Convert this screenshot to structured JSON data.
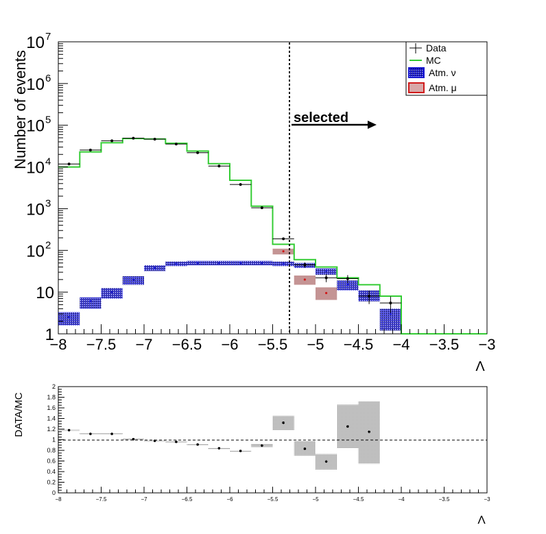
{
  "chart_data": [
    {
      "type": "histogram",
      "ylabel": "Number of events",
      "xlabel": "Λ",
      "xlim": [
        -8,
        -3
      ],
      "ylim": [
        1,
        10000000
      ],
      "yscale": "log",
      "x_ticks": [
        "−8",
        "−7.5",
        "−7",
        "−6.5",
        "−6",
        "−5.5",
        "−5",
        "−4.5",
        "−4",
        "−3.5",
        "−3"
      ],
      "y_ticks": [
        {
          "value": 1,
          "label": "1",
          "sup": ""
        },
        {
          "value": 10,
          "label": "10",
          "sup": ""
        },
        {
          "value": 100,
          "label": "10",
          "sup": "2"
        },
        {
          "value": 1000,
          "label": "10",
          "sup": "3"
        },
        {
          "value": 10000,
          "label": "10",
          "sup": "4"
        },
        {
          "value": 100000,
          "label": "10",
          "sup": "5"
        },
        {
          "value": 1000000,
          "label": "10",
          "sup": "6"
        },
        {
          "value": 10000000,
          "label": "10",
          "sup": "7"
        }
      ],
      "bin_edges": [
        -8,
        -7.75,
        -7.5,
        -7.25,
        -7,
        -6.75,
        -6.5,
        -6.25,
        -6,
        -5.75,
        -5.5,
        -5.25,
        -5,
        -4.75,
        -4.5,
        -4.25,
        -4,
        -3.75,
        -3.5,
        -3.25,
        -3
      ],
      "legend": {
        "position": "top-right",
        "entries": [
          {
            "label": "Data"
          },
          {
            "label": "MC"
          },
          {
            "label": "Atm. ν"
          },
          {
            "label": "Atm. μ"
          }
        ]
      },
      "cut": {
        "x": -5.3,
        "label": "selected"
      },
      "colors": {
        "data": "#000000",
        "mc": "#33cc33",
        "atm_nu": "#1a1ad0",
        "atm_mu": "#d01a1a",
        "band": "#8a8a8a"
      },
      "series": [
        {
          "name": "MC",
          "values": [
            10000,
            23000,
            38000,
            48000,
            47000,
            37000,
            24000,
            12000,
            4800,
            1150,
            140,
            60,
            40,
            22,
            15,
            8,
            1,
            1,
            1,
            1
          ]
        },
        {
          "name": "Data",
          "values": [
            11800,
            25500,
            42500,
            49000,
            46500,
            35500,
            22000,
            10500,
            3800,
            1050,
            190,
            45,
            22,
            21,
            8,
            5.5,
            null,
            null,
            null,
            null
          ]
        },
        {
          "name": "Atm. ν",
          "values": [
            2.5,
            6,
            10,
            20,
            38,
            48,
            50,
            50,
            50,
            50,
            48,
            45,
            32,
            15,
            8,
            3,
            null,
            null,
            null,
            null
          ],
          "band_low": [
            1.6,
            4,
            7,
            15,
            32,
            42,
            44,
            44,
            44,
            44,
            42,
            38,
            26,
            11,
            6,
            1.2,
            null,
            null,
            null,
            null
          ],
          "band_high": [
            3.3,
            7.5,
            12.5,
            24,
            44,
            54,
            56,
            56,
            56,
            56,
            54,
            50,
            37,
            19,
            11,
            4,
            null,
            null,
            null,
            null
          ]
        },
        {
          "name": "Atm. μ",
          "values": [
            null,
            null,
            null,
            null,
            null,
            null,
            null,
            null,
            null,
            null,
            95,
            20,
            9.5,
            null,
            null,
            null,
            null,
            null,
            null,
            null
          ],
          "band_low": [
            null,
            null,
            null,
            null,
            null,
            null,
            null,
            null,
            null,
            null,
            80,
            15,
            6.5,
            null,
            null,
            null,
            null,
            null,
            null,
            null
          ],
          "band_high": [
            null,
            null,
            null,
            null,
            null,
            null,
            null,
            null,
            null,
            null,
            110,
            25,
            13,
            null,
            null,
            null,
            null,
            null,
            null,
            null
          ]
        }
      ]
    },
    {
      "type": "scatter",
      "ylabel": "DATA/MC",
      "xlabel": "Λ",
      "xlim": [
        -8,
        -3
      ],
      "ylim": [
        0,
        2
      ],
      "reference_line": 1,
      "x_ticks": [
        "−8",
        "−7.5",
        "−7",
        "−6.5",
        "−6",
        "−5.5",
        "−5",
        "−4.5",
        "−4",
        "−3.5",
        "−3"
      ],
      "y_ticks": [
        "0",
        "0.2",
        "0.4",
        "0.6",
        "0.8",
        "1",
        "1.2",
        "1.4",
        "1.6",
        "1.8",
        "2"
      ],
      "series": [
        {
          "name": "DATA/MC",
          "x": [
            -7.875,
            -7.625,
            -7.375,
            -7.125,
            -6.875,
            -6.625,
            -6.375,
            -6.125,
            -5.875,
            -5.625,
            -5.375,
            -5.125,
            -4.875,
            -4.625,
            -4.375
          ],
          "y": [
            1.18,
            1.11,
            1.11,
            1.01,
            0.98,
            0.96,
            0.91,
            0.84,
            0.79,
            0.89,
            1.32,
            0.83,
            0.59,
            1.25,
            1.15
          ],
          "err_low": [
            1.17,
            1.1,
            1.1,
            1.0,
            0.975,
            0.955,
            0.905,
            0.835,
            0.785,
            0.86,
            1.18,
            0.7,
            0.44,
            0.84,
            0.55
          ],
          "err_high": [
            1.19,
            1.12,
            1.12,
            1.02,
            0.985,
            0.965,
            0.915,
            0.845,
            0.795,
            0.92,
            1.45,
            0.97,
            0.73,
            1.66,
            1.72
          ]
        }
      ]
    }
  ]
}
